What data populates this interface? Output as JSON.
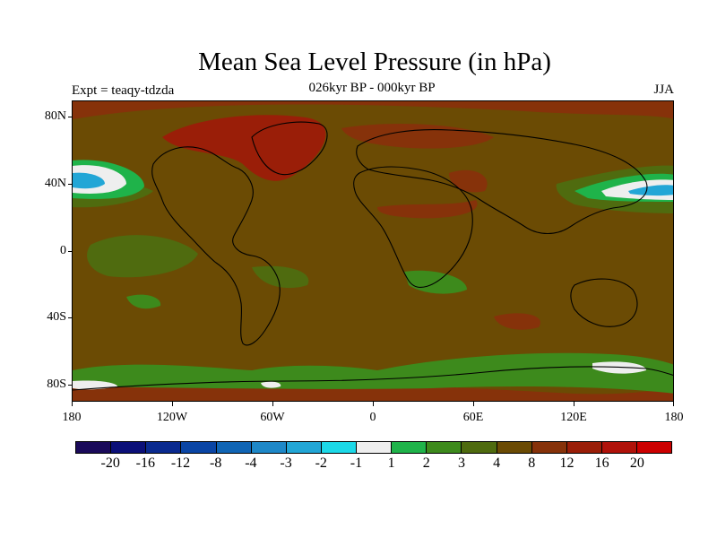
{
  "title": "Mean Sea Level Pressure (in hPa)",
  "subtitle": "026kyr BP - 000kyr BP",
  "experiment_label": "Expt = teaqy-tdzda",
  "season": "JJA",
  "lat_labels": [
    "80N",
    "40N",
    "0",
    "40S",
    "80S"
  ],
  "lon_labels": [
    "180",
    "120W",
    "60W",
    "0",
    "60E",
    "120E",
    "180"
  ],
  "colorbar": {
    "colors": [
      "#1a0a5a",
      "#0b0f78",
      "#0a2a8f",
      "#0a45a5",
      "#1065b5",
      "#1e88c8",
      "#22a6d6",
      "#1cd9e8",
      "#eeeeee",
      "#1fb34a",
      "#3d8a1c",
      "#4f6b0f",
      "#6b4b04",
      "#86320a",
      "#9a1e08",
      "#b0120a",
      "#cc0000"
    ],
    "labels": [
      "-20",
      "-16",
      "-12",
      "-8",
      "-4",
      "-3",
      "-2",
      "-1",
      "1",
      "2",
      "3",
      "4",
      "8",
      "12",
      "16",
      "20"
    ]
  },
  "field_colors": {
    "background": "#6b4b04",
    "high_strong": "#9a1e08",
    "high_medium": "#86320a",
    "low_weak": "#4f6b0f",
    "low_medium": "#3d8a1c",
    "low_green": "#1fb34a",
    "near_zero": "#eeeeee",
    "negative": "#1cd9e8",
    "negative_strong": "#22a6d6"
  }
}
